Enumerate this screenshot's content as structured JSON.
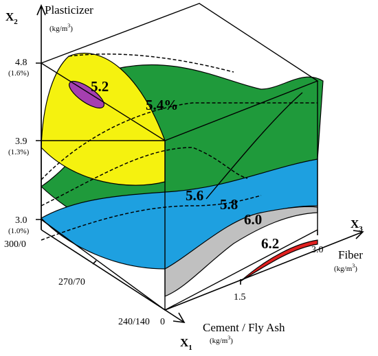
{
  "axes": {
    "x1": {
      "symbol": "X",
      "subscript": "1",
      "title": "Cement / Fly Ash",
      "unit": "(kg/m",
      "unit_sup": "3",
      "unit_end": ")",
      "ticks": [
        "300/0",
        "270/70",
        "240/140"
      ]
    },
    "x2": {
      "symbol": "X",
      "subscript": "2",
      "title": "Plasticizer",
      "unit": "(kg/m",
      "unit_sup": "3",
      "unit_end": ")",
      "ticks": [
        {
          "label": "4.8",
          "sub": "(1.6%)"
        },
        {
          "label": "3.9",
          "sub": "(1.3%)"
        },
        {
          "label": "3.0",
          "sub": "(1.0%)"
        }
      ]
    },
    "x3": {
      "symbol": "X",
      "subscript": "3",
      "title": "Fiber",
      "unit": "(kg/m",
      "unit_sup": "3",
      "unit_end": ")",
      "ticks": [
        "1.5",
        "3.0"
      ]
    },
    "origin": "0"
  },
  "surfaces": [
    "5.2",
    "5.4%",
    "5.6",
    "5.8",
    "6.0",
    "6.2"
  ]
}
